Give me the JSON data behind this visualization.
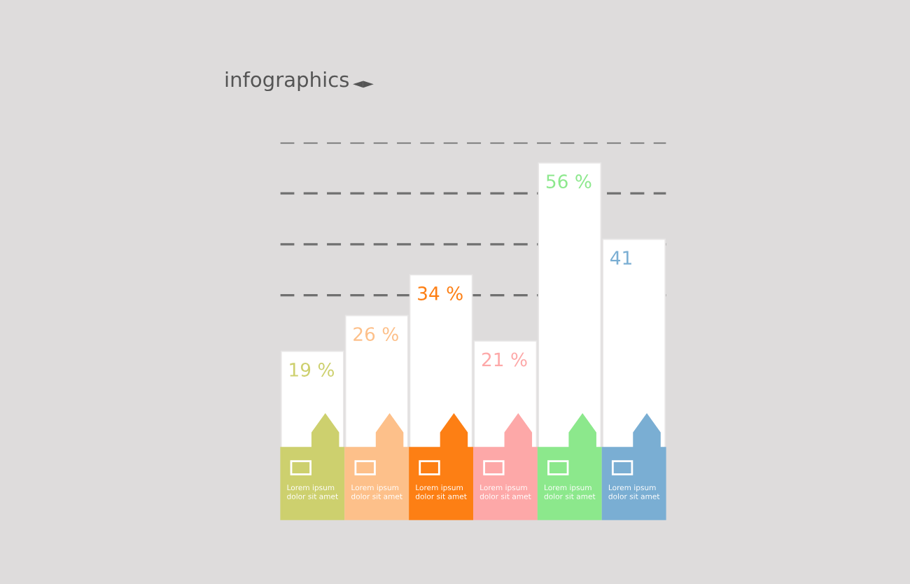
{
  "chart_data": {
    "type": "bar",
    "title": "infographics",
    "annotations": [
      "◄►"
    ],
    "categories": [
      "Lorem ipsum\ndolor sit amet",
      "Lorem ipsum\ndolor sit amet",
      "Lorem ipsum\ndolor sit amet",
      "Lorem ipsum\ndolor sit amet",
      "Lorem ipsum\ndolor sit amet",
      "Lorem ipsum\ndolor sit amet"
    ],
    "values": [
      19,
      26,
      34,
      21,
      56,
      41
    ],
    "value_labels": [
      "19 %",
      "26 %",
      "34 %",
      "21 %",
      "56 %",
      "41"
    ],
    "colors": [
      "#ffffff",
      "#ffffff",
      "#ffffff",
      "#ffffff",
      "#ffffff",
      "#ffffff"
    ],
    "ylim": [
      0,
      60
    ],
    "yticks": [
      {
        "value": 30,
        "label": null
      },
      {
        "value": 40,
        "label": null
      },
      {
        "value": 50,
        "label": null
      },
      {
        "value": 60,
        "label": null
      }
    ],
    "grid": "y",
    "tick_labels": "x"
  }
}
